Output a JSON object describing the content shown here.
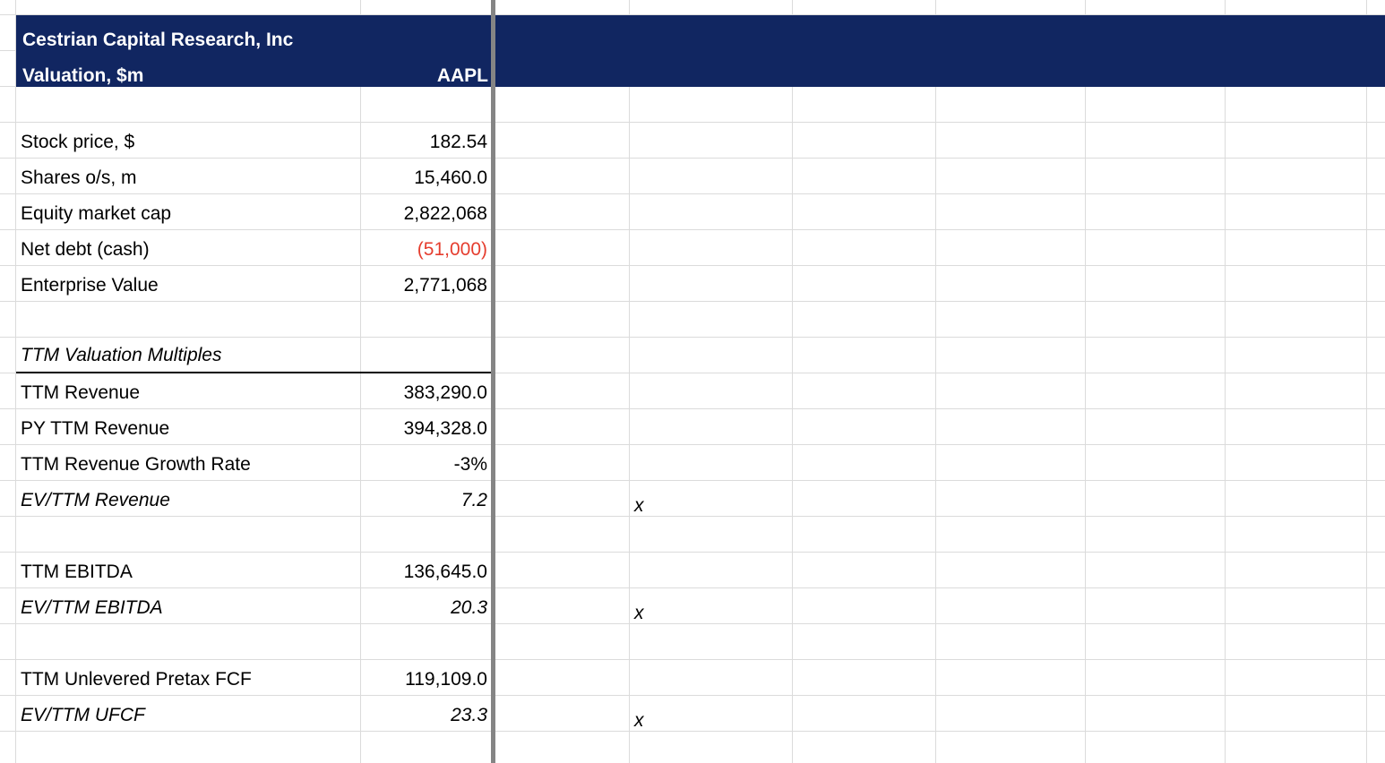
{
  "header": {
    "company": "Cestrian Capital Research, Inc",
    "sheet_title": "Valuation, $m",
    "ticker": "AAPL"
  },
  "colors": {
    "header_bg": "#112661",
    "header_text": "#FFFFFF",
    "negative_value": "#E53D2E",
    "gridline": "#DBDBDB",
    "pane_divider": "#858585",
    "cell_text": "#000000"
  },
  "table": {
    "rows": [
      {
        "label": "Stock price, $",
        "value": "182.54"
      },
      {
        "label": "Shares o/s, m",
        "value": "15,460.0"
      },
      {
        "label": "Equity market cap",
        "value": "2,822,068"
      },
      {
        "label": "Net debt (cash)",
        "value": "(51,000)",
        "negative": true
      },
      {
        "label": "Enterprise Value",
        "value": "2,771,068"
      },
      {
        "label": "TTM Valuation Multiples",
        "value": "",
        "section": true
      },
      {
        "label": "TTM Revenue",
        "value": "383,290.0"
      },
      {
        "label": "PY TTM Revenue",
        "value": "394,328.0"
      },
      {
        "label": "TTM Revenue Growth Rate",
        "value": "-3%"
      },
      {
        "label": "EV/TTM Revenue",
        "value": "7.2",
        "multiplier_mark": "x"
      },
      {
        "label": "TTM EBITDA",
        "value": "136,645.0"
      },
      {
        "label": "EV/TTM EBITDA",
        "value": "20.3",
        "multiplier_mark": "x"
      },
      {
        "label": "TTM Unlevered Pretax FCF",
        "value": "119,109.0"
      },
      {
        "label": "EV/TTM UFCF",
        "value": "23.3",
        "multiplier_mark": "x"
      }
    ]
  }
}
